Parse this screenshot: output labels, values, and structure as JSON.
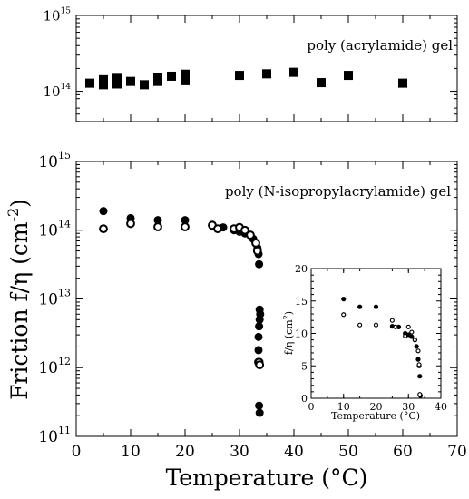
{
  "chart_data": [
    {
      "id": "top",
      "type": "scatter",
      "yscale": "log",
      "xlim": [
        0,
        70
      ],
      "ylim_exponents": [
        13.6,
        15
      ],
      "ytick_exponents": [
        14,
        15
      ],
      "ytick_labels": [
        {
          "base": "10",
          "exp": "14"
        },
        {
          "base": "10",
          "exp": "15"
        }
      ],
      "annotation": "poly (acrylamide) gel",
      "series": [
        {
          "marker": "filled-square",
          "color": "#000000",
          "x": [
            2.5,
            5,
            5,
            7.5,
            7.5,
            10,
            12.5,
            15,
            15,
            17.5,
            20,
            20,
            30,
            35,
            40,
            45,
            50,
            60
          ],
          "y": [
            128000000000000.0,
            122000000000000.0,
            142000000000000.0,
            125000000000000.0,
            148000000000000.0,
            135000000000000.0,
            122000000000000.0,
            135000000000000.0,
            150000000000000.0,
            158000000000000.0,
            138000000000000.0,
            168000000000000.0,
            162000000000000.0,
            170000000000000.0,
            178000000000000.0,
            130000000000000.0,
            162000000000000.0,
            128000000000000.0
          ]
        }
      ]
    },
    {
      "id": "main",
      "type": "scatter",
      "yscale": "log",
      "xlim": [
        0,
        70
      ],
      "ylim_exponents": [
        11,
        15
      ],
      "xticks": [
        0,
        10,
        20,
        30,
        40,
        50,
        60,
        70
      ],
      "ytick_exponents": [
        11,
        12,
        13,
        14,
        15
      ],
      "ytick_labels": [
        {
          "base": "10",
          "exp": "11"
        },
        {
          "base": "10",
          "exp": "12"
        },
        {
          "base": "10",
          "exp": "13"
        },
        {
          "base": "10",
          "exp": "14"
        },
        {
          "base": "10",
          "exp": "15"
        }
      ],
      "xlabel": "Temperature (°C)",
      "ylabel": "Friction f/η (cm",
      "ylabel_sup": "-2",
      "ylabel_end": ")",
      "annotation": "poly (N-isopropylacrylamide) gel",
      "series": [
        {
          "marker": "filled-circle",
          "color": "#000000",
          "x": [
            5,
            10,
            15,
            20,
            25,
            27,
            29,
            30,
            31,
            32,
            32.5,
            33,
            33.3,
            33.5,
            33.6,
            33.7,
            33.8,
            33.7,
            33.6,
            33.5,
            33.5,
            33.6,
            33.7
          ],
          "y": [
            190000000000000.0,
            150000000000000.0,
            140000000000000.0,
            140000000000000.0,
            120000000000000.0,
            110000000000000.0,
            100000000000000.0,
            95000000000000.0,
            90000000000000.0,
            85000000000000.0,
            75000000000000.0,
            65000000000000.0,
            55000000000000.0,
            45000000000000.0,
            32000000000000.0,
            7000000000000.0,
            6000000000000.0,
            5000000000000.0,
            4000000000000.0,
            2800000000000.0,
            1800000000000.0,
            280000000000.0,
            220000000000.0
          ]
        },
        {
          "marker": "open-circle",
          "color": "#000000",
          "x": [
            5,
            10,
            15,
            20,
            25,
            26,
            29,
            30,
            31,
            32,
            33,
            33.3,
            33.5,
            33.6,
            33.7
          ],
          "y": [
            105000000000000.0,
            125000000000000.0,
            112000000000000.0,
            112000000000000.0,
            118000000000000.0,
            105000000000000.0,
            105000000000000.0,
            110000000000000.0,
            100000000000000.0,
            85000000000000.0,
            65000000000000.0,
            50000000000000.0,
            1200000000000.0,
            1200000000000.0,
            1100000000000.0
          ]
        }
      ]
    },
    {
      "id": "inset",
      "type": "scatter",
      "yscale": "linear",
      "xlim": [
        0,
        40
      ],
      "ylim": [
        0,
        20
      ],
      "xticks": [
        0,
        10,
        20,
        30,
        40
      ],
      "yticks": [
        0,
        5,
        10,
        15,
        20
      ],
      "xlabel": "Temperature (°C)",
      "ylabel": "f/η (cm",
      "ylabel_sup": "2",
      "ylabel_end": ")",
      "series": [
        {
          "marker": "filled-circle",
          "color": "#000000",
          "x": [
            10,
            15,
            20,
            25,
            27,
            29,
            30,
            31,
            32,
            32.5,
            33,
            33.3,
            33.5,
            33.7
          ],
          "y": [
            15.3,
            14.1,
            14.1,
            11.1,
            11.0,
            10.0,
            9.8,
            9.5,
            9.0,
            8.0,
            6.0,
            5.0,
            3.4,
            0.4
          ]
        },
        {
          "marker": "open-circle",
          "color": "#000000",
          "x": [
            10,
            15,
            20,
            25,
            26,
            29,
            30,
            31,
            32,
            33,
            33.3,
            33.5
          ],
          "y": [
            12.9,
            11.3,
            11.3,
            12.0,
            11.0,
            9.6,
            11.0,
            10.2,
            9.0,
            7.3,
            5.2,
            0.6
          ]
        }
      ]
    }
  ]
}
